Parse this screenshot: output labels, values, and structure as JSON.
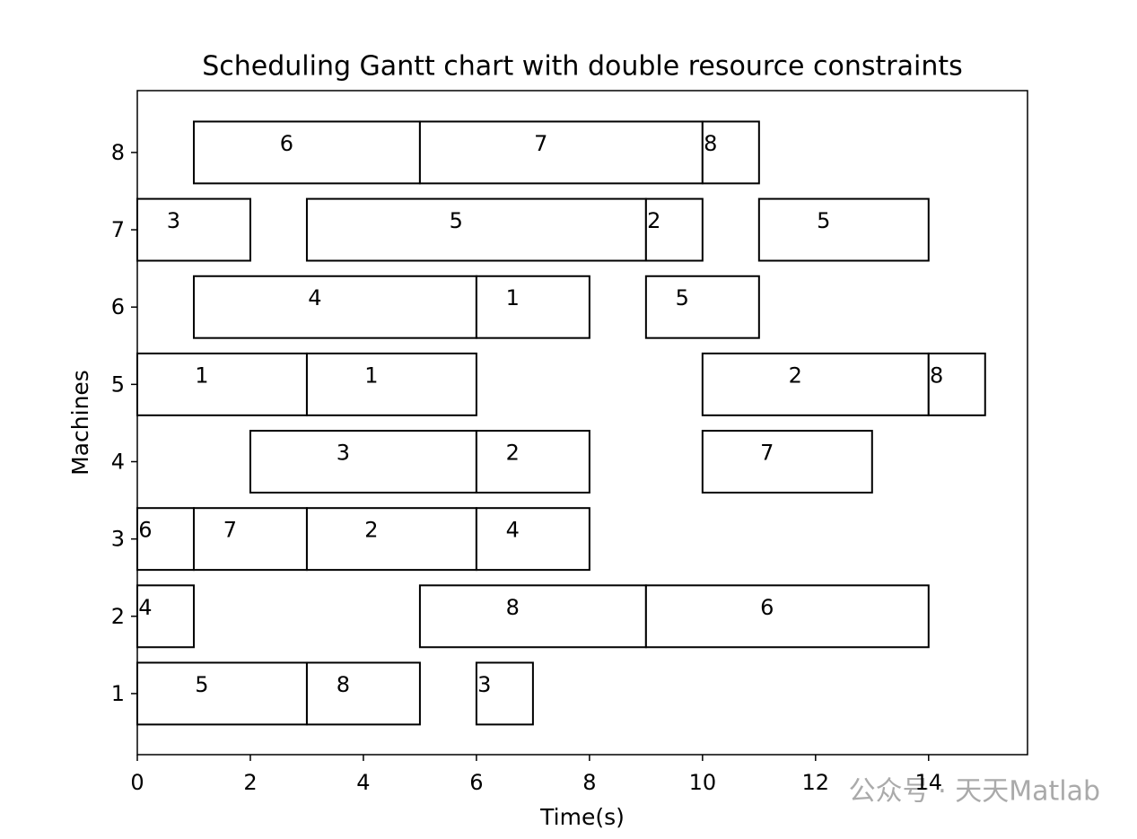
{
  "chart_data": {
    "type": "gantt",
    "title": "Scheduling Gantt chart with double resource constraints",
    "xlabel": "Time(s)",
    "ylabel": "Machines",
    "xlim": [
      0,
      15.75
    ],
    "xticks": [
      0,
      2,
      4,
      6,
      8,
      10,
      12,
      14
    ],
    "ylim": [
      0.21,
      8.8
    ],
    "yticks": [
      1,
      2,
      3,
      4,
      5,
      6,
      7,
      8
    ],
    "bar_color": "#ffffff",
    "edge_color": "#000000",
    "tasks": [
      {
        "machine": 8,
        "start": 1,
        "end": 5,
        "label": "6"
      },
      {
        "machine": 8,
        "start": 5,
        "end": 10,
        "label": "7"
      },
      {
        "machine": 8,
        "start": 10,
        "end": 11,
        "label": "8"
      },
      {
        "machine": 7,
        "start": 0,
        "end": 2,
        "label": "3"
      },
      {
        "machine": 7,
        "start": 3,
        "end": 9,
        "label": "5"
      },
      {
        "machine": 7,
        "start": 9,
        "end": 10,
        "label": "2"
      },
      {
        "machine": 7,
        "start": 11,
        "end": 14,
        "label": "5"
      },
      {
        "machine": 6,
        "start": 1,
        "end": 6,
        "label": "4"
      },
      {
        "machine": 6,
        "start": 6,
        "end": 8,
        "label": "1"
      },
      {
        "machine": 6,
        "start": 9,
        "end": 11,
        "label": "5"
      },
      {
        "machine": 5,
        "start": 0,
        "end": 3,
        "label": "1"
      },
      {
        "machine": 5,
        "start": 3,
        "end": 6,
        "label": "1"
      },
      {
        "machine": 5,
        "start": 10,
        "end": 14,
        "label": "2"
      },
      {
        "machine": 5,
        "start": 14,
        "end": 15,
        "label": "8"
      },
      {
        "machine": 4,
        "start": 2,
        "end": 6,
        "label": "3"
      },
      {
        "machine": 4,
        "start": 6,
        "end": 8,
        "label": "2"
      },
      {
        "machine": 4,
        "start": 10,
        "end": 13,
        "label": "7"
      },
      {
        "machine": 3,
        "start": 0,
        "end": 1,
        "label": "6"
      },
      {
        "machine": 3,
        "start": 1,
        "end": 3,
        "label": "7"
      },
      {
        "machine": 3,
        "start": 3,
        "end": 6,
        "label": "2"
      },
      {
        "machine": 3,
        "start": 6,
        "end": 8,
        "label": "4"
      },
      {
        "machine": 2,
        "start": 0,
        "end": 1,
        "label": "4"
      },
      {
        "machine": 2,
        "start": 5,
        "end": 9,
        "label": "8"
      },
      {
        "machine": 2,
        "start": 9,
        "end": 14,
        "label": "6"
      },
      {
        "machine": 1,
        "start": 0,
        "end": 3,
        "label": "5"
      },
      {
        "machine": 1,
        "start": 3,
        "end": 5,
        "label": "8"
      },
      {
        "machine": 1,
        "start": 6,
        "end": 7,
        "label": "3"
      }
    ]
  },
  "watermark": "公众号 · 天天Matlab"
}
